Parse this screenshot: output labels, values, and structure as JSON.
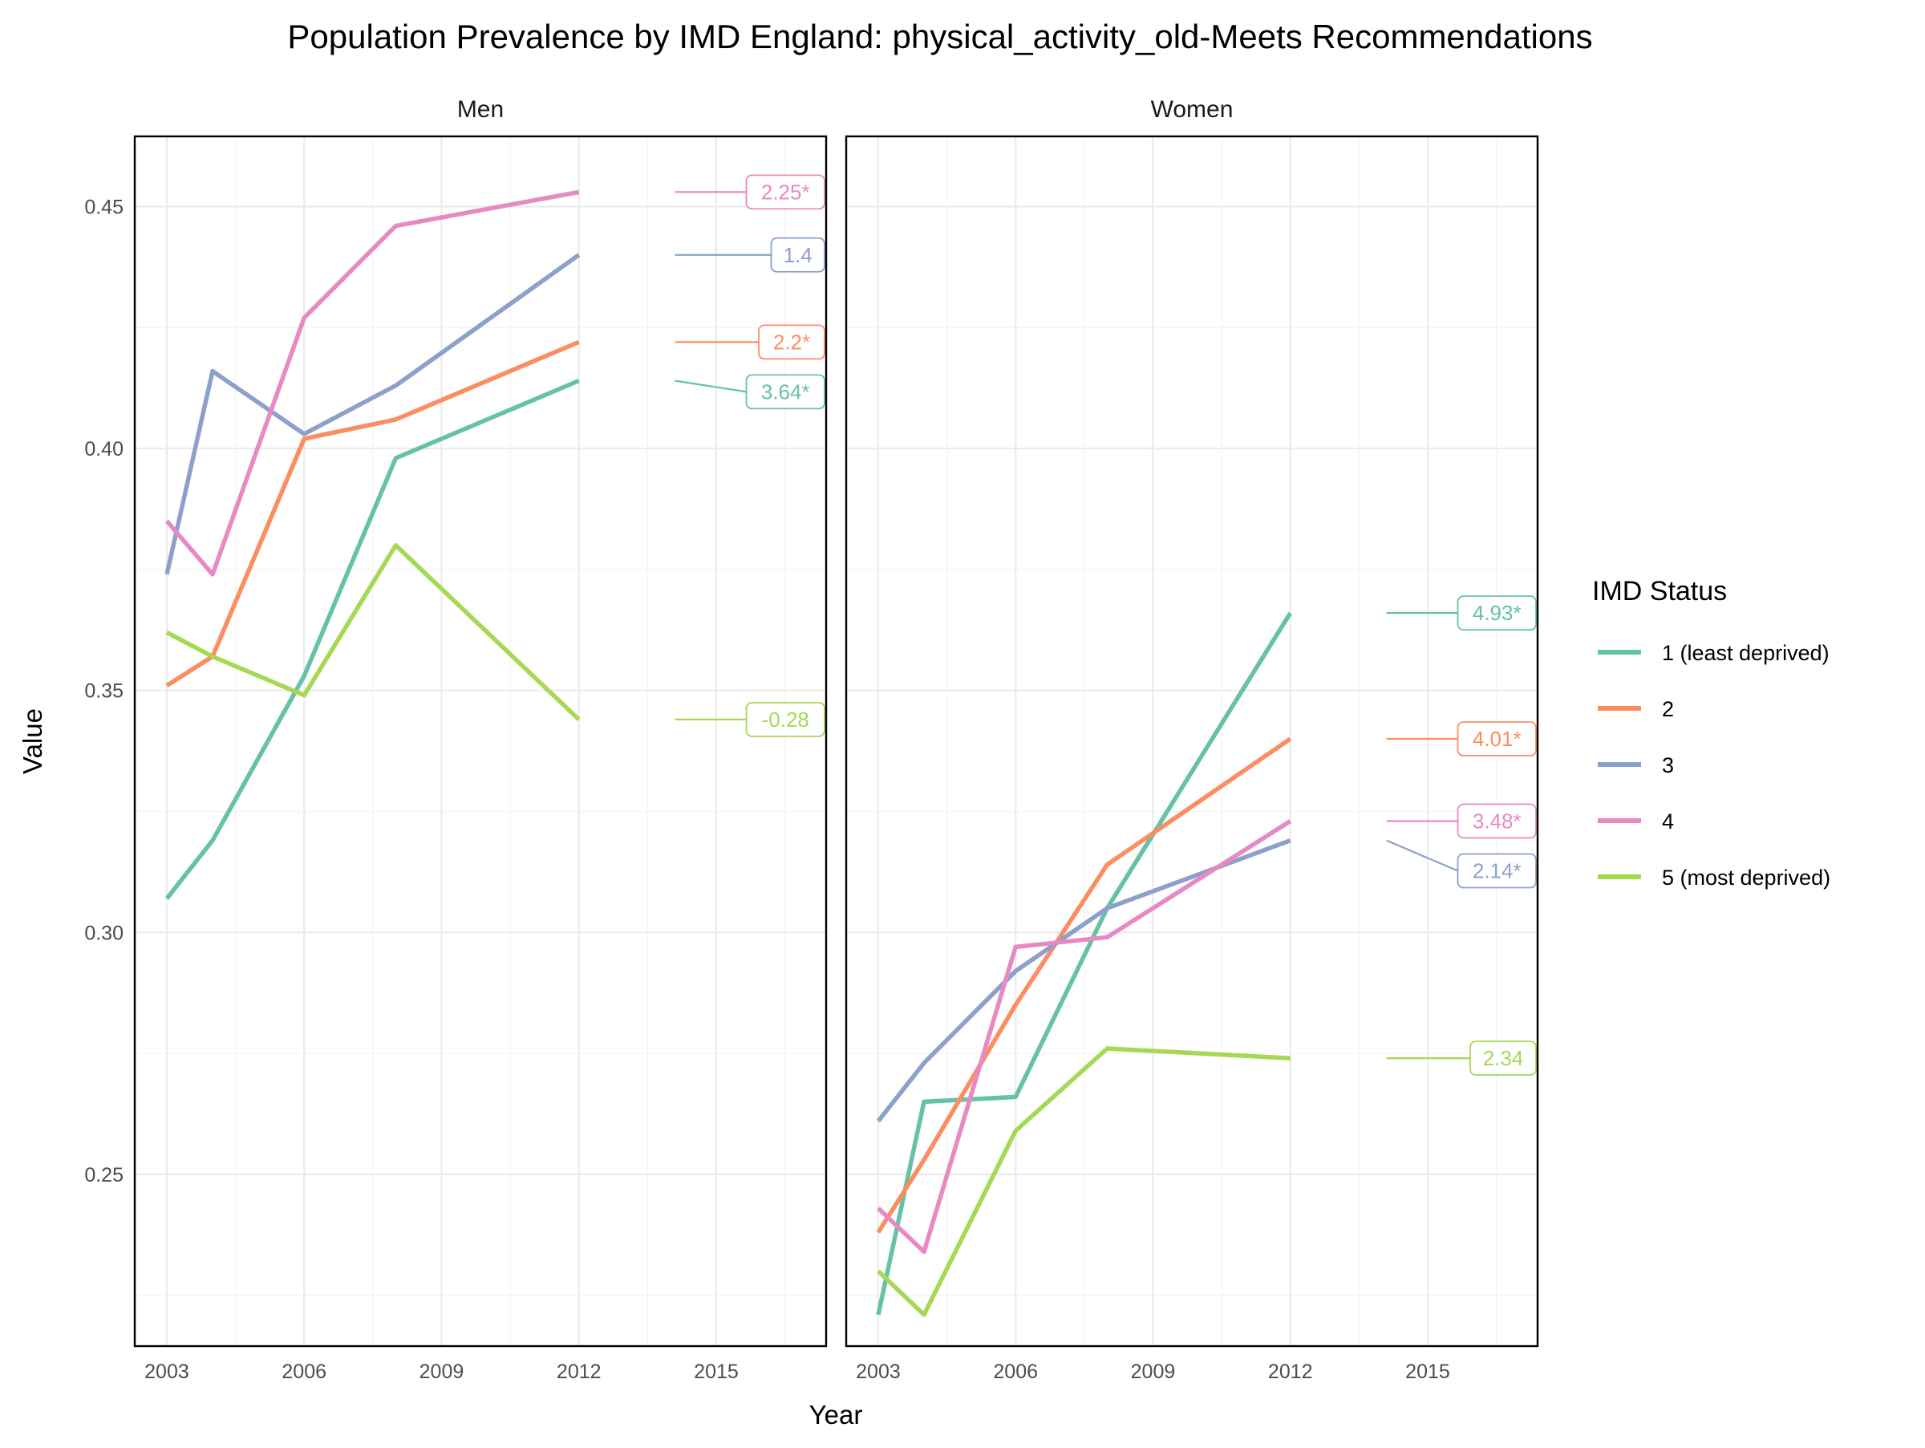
{
  "chart_data": {
    "type": "line",
    "title": "Population Prevalence by IMD England: physical_activity_old-Meets Recommendations",
    "xlabel": "Year",
    "ylabel": "Value",
    "x_ticks": [
      2003,
      2006,
      2009,
      2012,
      2015
    ],
    "x_range": [
      2002.3,
      2017.4
    ],
    "y_ticks": [
      0.25,
      0.3,
      0.35,
      0.4,
      0.45
    ],
    "y_tick_labels": [
      "0.25",
      "0.30",
      "0.35",
      "0.40",
      "0.45"
    ],
    "y_range": [
      0.2145,
      0.4645
    ],
    "grid": true,
    "legend": {
      "title": "IMD Status",
      "position": "right",
      "items": [
        "1 (least deprived)",
        "2",
        "3",
        "4",
        "5 (most deprived)"
      ]
    },
    "colors": {
      "1 (least deprived)": "#66c2a5",
      "2": "#fc8d62",
      "3": "#8da0cb",
      "4": "#e78ac3",
      "5 (most deprived)": "#a6d854"
    },
    "panels": [
      {
        "label": "Men",
        "x": [
          2003,
          2004,
          2006,
          2008,
          2012
        ],
        "series": [
          {
            "name": "1 (least deprived)",
            "values": [
              0.307,
              0.319,
              0.353,
              0.398,
              0.414
            ],
            "annotation": "3.64*"
          },
          {
            "name": "2",
            "values": [
              0.351,
              0.357,
              0.402,
              0.406,
              0.422
            ],
            "annotation": "2.2*"
          },
          {
            "name": "3",
            "values": [
              0.374,
              0.416,
              0.403,
              0.413,
              0.44
            ],
            "annotation": "1.4"
          },
          {
            "name": "4",
            "values": [
              0.385,
              0.374,
              0.427,
              0.446,
              0.453
            ],
            "annotation": "2.25*"
          },
          {
            "name": "5 (most deprived)",
            "values": [
              0.362,
              0.357,
              0.349,
              0.38,
              0.344
            ],
            "annotation": "-0.28"
          }
        ]
      },
      {
        "label": "Women",
        "x": [
          2003,
          2004,
          2006,
          2008,
          2012
        ],
        "series": [
          {
            "name": "1 (least deprived)",
            "values": [
              0.221,
              0.265,
              0.266,
              0.305,
              0.366
            ],
            "annotation": "4.93*"
          },
          {
            "name": "2",
            "values": [
              0.238,
              0.253,
              0.285,
              0.314,
              0.34
            ],
            "annotation": "4.01*"
          },
          {
            "name": "3",
            "values": [
              0.261,
              0.273,
              0.292,
              0.305,
              0.319
            ],
            "annotation": "2.14*"
          },
          {
            "name": "4",
            "values": [
              0.243,
              0.234,
              0.297,
              0.299,
              0.323
            ],
            "annotation": "3.48*"
          },
          {
            "name": "5 (most deprived)",
            "values": [
              0.23,
              0.221,
              0.259,
              0.276,
              0.274
            ],
            "annotation": "2.34"
          }
        ]
      }
    ]
  }
}
